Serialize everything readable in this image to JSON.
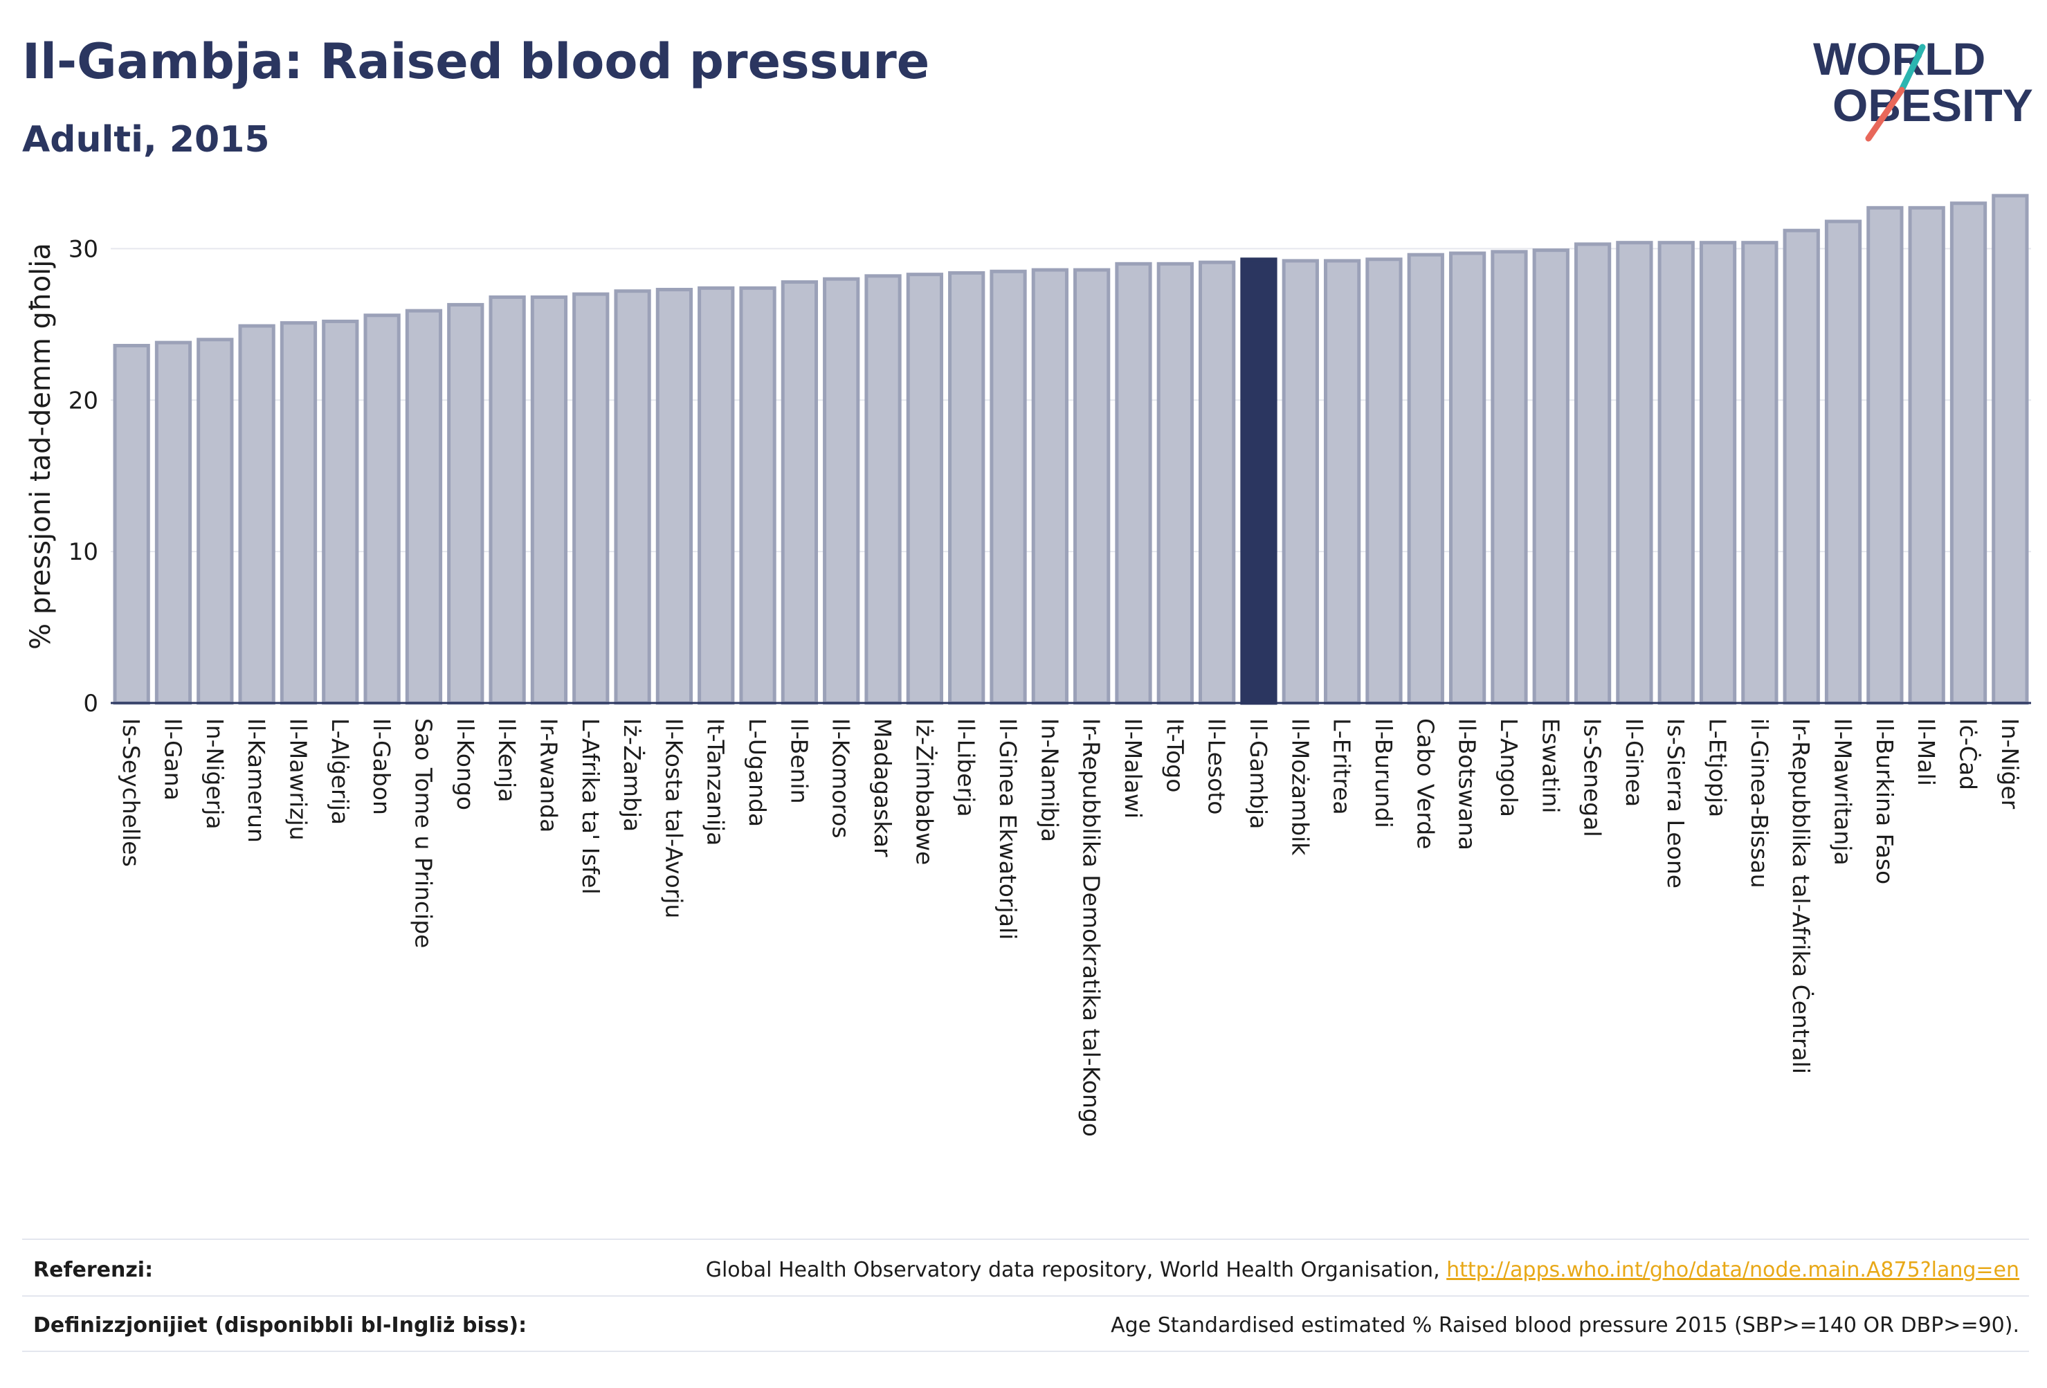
{
  "header": {
    "title": "Il-Gambja: Raised blood pressure",
    "subtitle": "Adulti, 2015"
  },
  "logo": {
    "line1": "WORLD",
    "line2": "OBESITY",
    "colors": {
      "text": "#2b3660",
      "slash_top": "#2bb5b0",
      "slash_bottom": "#e8675a"
    }
  },
  "colors": {
    "bar_fill": "#bcc0cf",
    "bar_stroke": "#9ba1b8",
    "highlight": "#2b3660",
    "grid": "#e6e8ee",
    "axis": "#2b3660"
  },
  "chart_data": {
    "type": "bar",
    "title": "Il-Gambja: Raised blood pressure",
    "subtitle": "Adulti, 2015",
    "ylabel": "% pressjoni tad-demm għolja",
    "xlabel": "",
    "ylim": [
      0,
      35
    ],
    "yticks": [
      0,
      10,
      20,
      30
    ],
    "grid": true,
    "highlight": "Il-Gambja",
    "categories": [
      "Is-Seychelles",
      "Il-Gana",
      "In-Niġerja",
      "Il-Kamerun",
      "Il-Mawrizju",
      "L-Alġerija",
      "Il-Gabon",
      "Sao Tome u Principe",
      "Il-Kongo",
      "Il-Kenja",
      "Ir-Rwanda",
      "L-Afrika ta' Isfel",
      "Iż-Żambja",
      "Il-Kosta tal-Avorju",
      "It-Tanzanija",
      "L-Uganda",
      "Il-Benin",
      "Il-Komoros",
      "Madagaskar",
      "Iż-Żimbabwe",
      "Il-Liberja",
      "Il-Ginea Ekwatorjali",
      "In-Namibja",
      "Ir-Repubblika Demokratika tal-Kongo",
      "Il-Malawi",
      "It-Togo",
      "Il-Lesoto",
      "Il-Gambja",
      "Il-Możambik",
      "L-Eritrea",
      "Il-Burundi",
      "Cabo Verde",
      "Il-Botswana",
      "L-Angola",
      "Eswatini",
      "Is-Senegal",
      "Il-Ginea",
      "Is-Sierra Leone",
      "L-Etjopja",
      "il-Ginea-Bissau",
      "Ir-Repubblika tal-Afrika Ċentrali",
      "Il-Mawritanja",
      "Il-Burkina Faso",
      "Il-Mali",
      "Iċ-Ċad",
      "In-Niġer"
    ],
    "values": [
      23.6,
      23.8,
      24.0,
      24.9,
      25.1,
      25.2,
      25.6,
      25.9,
      26.3,
      26.8,
      26.8,
      27.0,
      27.2,
      27.3,
      27.4,
      27.4,
      27.8,
      28.0,
      28.2,
      28.3,
      28.4,
      28.5,
      28.6,
      28.6,
      29.0,
      29.0,
      29.1,
      29.3,
      29.2,
      29.2,
      29.3,
      29.6,
      29.7,
      29.8,
      29.9,
      30.3,
      30.4,
      30.4,
      30.4,
      30.4,
      31.2,
      31.8,
      32.7,
      32.7,
      33.0,
      33.5
    ]
  },
  "footer": {
    "references_label": "Referenzi:",
    "references_text": "Global Health Observatory data repository, World Health Organisation, ",
    "references_link": "http://apps.who.int/gho/data/node.main.A875?lang=en",
    "definitions_label": "Definizzjonijiet (disponibbli bl-Ingliż biss):",
    "definitions_text": "Age Standardised estimated % Raised blood pressure 2015 (SBP>=140 OR DBP>=90)."
  }
}
